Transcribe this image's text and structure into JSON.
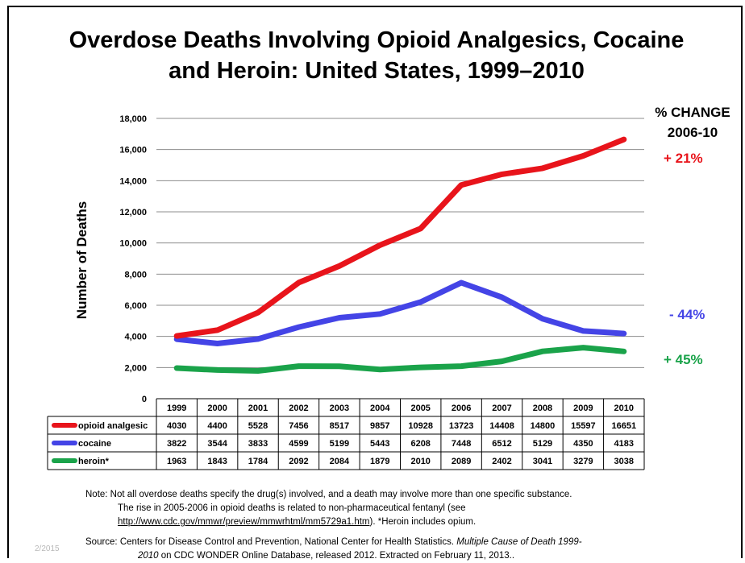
{
  "title_line1": "Overdose Deaths Involving Opioid Analgesics, Cocaine",
  "title_line2": "and Heroin:  United States, 1999–2010",
  "pct_change_header_line1": "% CHANGE",
  "pct_change_header_line2": "2006-10",
  "pct_changes": [
    {
      "series": "opioid analgesic",
      "label": "+ 21%",
      "color": "#e8141b"
    },
    {
      "series": "cocaine",
      "label": "- 44%",
      "color": "#4444e6"
    },
    {
      "series": "heroin*",
      "label": "+ 45%",
      "color": "#1aa34a"
    }
  ],
  "chart_data": {
    "type": "line",
    "ylabel": "Number of Deaths",
    "ylim": [
      0,
      18000
    ],
    "yticks": [
      "0",
      "2,000",
      "4,000",
      "6,000",
      "8,000",
      "10,000",
      "12,000",
      "14,000",
      "16,000",
      "18,000"
    ],
    "grid": true,
    "categories": [
      "1999",
      "2000",
      "2001",
      "2002",
      "2003",
      "2004",
      "2005",
      "2006",
      "2007",
      "2008",
      "2009",
      "2010"
    ],
    "series": [
      {
        "name": "opioid analgesic",
        "color": "#e8141b",
        "values": [
          4030,
          4400,
          5528,
          7456,
          8517,
          9857,
          10928,
          13723,
          14408,
          14800,
          15597,
          16651
        ]
      },
      {
        "name": "cocaine",
        "color": "#4444e6",
        "values": [
          3822,
          3544,
          3833,
          4599,
          5199,
          5443,
          6208,
          7448,
          6512,
          5129,
          4350,
          4183
        ]
      },
      {
        "name": "heroin*",
        "color": "#1aa34a",
        "values": [
          1963,
          1843,
          1784,
          2092,
          2084,
          1879,
          2010,
          2089,
          2402,
          3041,
          3279,
          3038
        ]
      }
    ]
  },
  "note": {
    "line1": "Note: Not all overdose deaths specify the drug(s) involved, and a death may involve more than one specific substance.",
    "line2": "The rise in 2005-2006 in opioid deaths is related to non-pharmaceutical fentanyl (see",
    "link": "http://www.cdc.gov/mmwr/preview/mmwrhtml/mm5729a1.htm",
    "line3_after": ").   *Heroin includes opium."
  },
  "source": {
    "line1_prefix": "Source:  Centers for Disease Control and Prevention,  National Center for Health Statistics. ",
    "line1_italic": "Multiple Cause of Death 1999-",
    "line2_italic": "2010",
    "line2_rest": "  on CDC WONDER Online Database, released 2012.  Extracted on February 11, 2013.."
  },
  "date_stamp": "2/2015"
}
